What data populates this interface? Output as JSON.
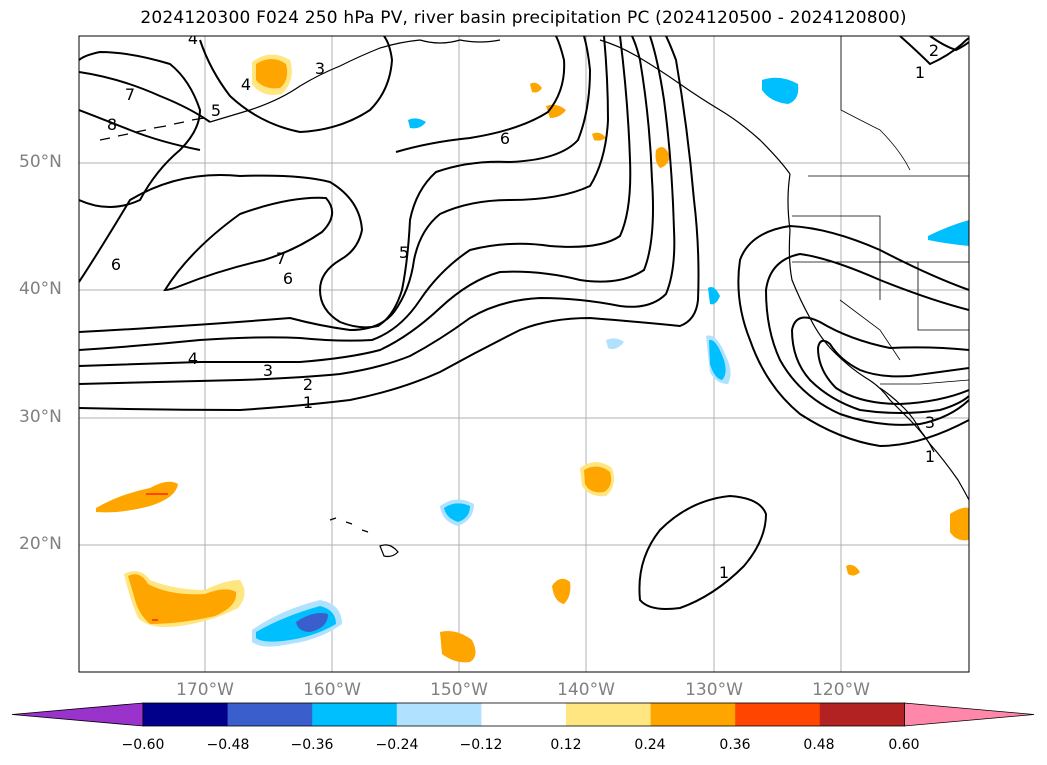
{
  "title": "2024120300 F024 250 hPa PV, river basin precipitation PC (2024120500 - 2024120800)",
  "lat_labels": [
    "50°N",
    "40°N",
    "30°N",
    "20°N"
  ],
  "lon_labels": [
    "170°W",
    "160°W",
    "150°W",
    "140°W",
    "130°W",
    "120°W"
  ],
  "contour_labels": [
    "4",
    "3",
    "7",
    "8",
    "4",
    "5",
    "6",
    "6",
    "7",
    "6",
    "5",
    "4",
    "3",
    "2",
    "1",
    "1",
    "2",
    "1",
    "3",
    "1"
  ],
  "colorbar": {
    "ticks": [
      "−0.60",
      "−0.48",
      "−0.36",
      "−0.24",
      "−0.12",
      "0.12",
      "0.24",
      "0.36",
      "0.48",
      "0.60"
    ],
    "colors": [
      "#9933cc",
      "#00008b",
      "#3a5fcd",
      "#00bfff",
      "#b0e2ff",
      "#ffffff",
      "#ffe680",
      "#ffa500",
      "#ff4500",
      "#b22222",
      "#ff88aa"
    ]
  },
  "colors": {
    "grid": "#b0b0b0",
    "contour": "#000000",
    "axis_label": "#808080"
  }
}
